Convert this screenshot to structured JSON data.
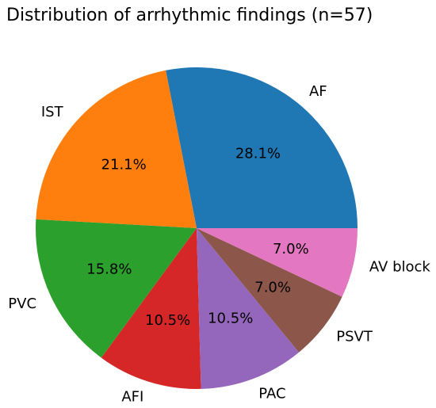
{
  "chart_data": {
    "type": "pie",
    "title": "Distribution of arrhythmic findings (n=57)",
    "slices": [
      {
        "label": "AF",
        "value": 16,
        "percent_label": "28.1%",
        "color": "#1f77b4"
      },
      {
        "label": "IST",
        "value": 12,
        "percent_label": "21.1%",
        "color": "#ff7f0e"
      },
      {
        "label": "PVC",
        "value": 9,
        "percent_label": "15.8%",
        "color": "#2ca02c"
      },
      {
        "label": "AFI",
        "value": 6,
        "percent_label": "10.5%",
        "color": "#d62728"
      },
      {
        "label": "PAC",
        "value": 6,
        "percent_label": "10.5%",
        "color": "#9467bd"
      },
      {
        "label": "PSVT",
        "value": 4,
        "percent_label": "7.0%",
        "color": "#8c564b"
      },
      {
        "label": "AV block",
        "value": 4,
        "percent_label": "7.0%",
        "color": "#e377c2"
      }
    ],
    "start_angle_deg": 0,
    "direction": "counterclockwise",
    "legend": "none"
  }
}
